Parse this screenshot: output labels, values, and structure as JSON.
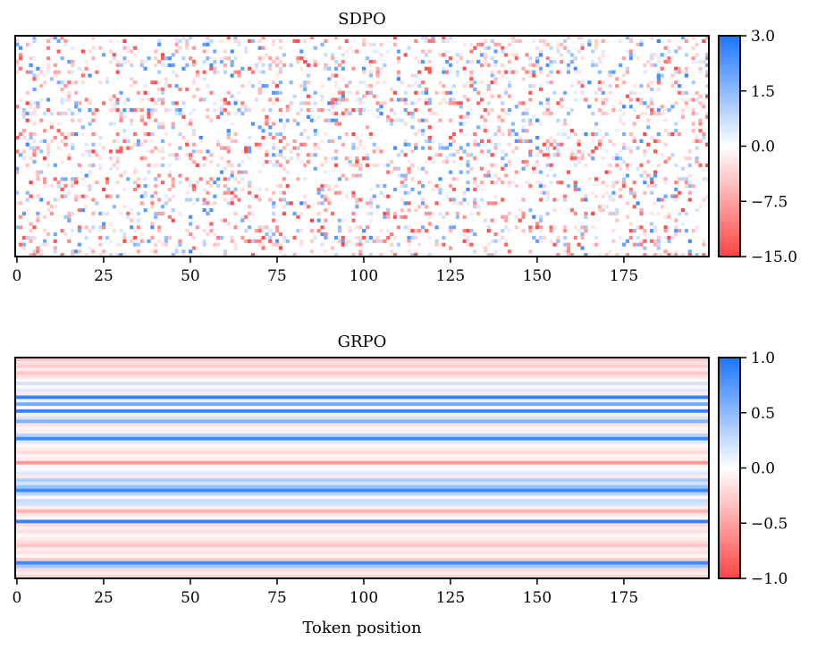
{
  "chart_data": [
    {
      "type": "heatmap",
      "title": "SDPO",
      "xlabel": "",
      "x_range": [
        0,
        199
      ],
      "rows": 64,
      "columns": 200,
      "x_ticks": [
        0,
        25,
        50,
        75,
        100,
        125,
        150,
        175
      ],
      "colorbar": {
        "min": -15.0,
        "center": 0.0,
        "max": 3.0,
        "ticks": [
          3.0,
          1.5,
          0.0,
          -7.5,
          -15.0
        ],
        "tick_labels": [
          "3.0",
          "1.5",
          "0.0",
          "−7.5",
          "−15.0"
        ],
        "negative_color": "#ff4444",
        "positive_color": "#1a75ff",
        "center_color": "#ffffff"
      },
      "pattern": "sparse per-token noise, mostly near zero with scattered red and blue cells"
    },
    {
      "type": "heatmap",
      "title": "GRPO",
      "xlabel": "Token position",
      "x_range": [
        0,
        199
      ],
      "rows": 64,
      "columns": 200,
      "x_ticks": [
        0,
        25,
        50,
        75,
        100,
        125,
        150,
        175
      ],
      "colorbar": {
        "min": -1.0,
        "center": 0.0,
        "max": 1.0,
        "ticks": [
          1.0,
          0.5,
          0.0,
          -0.5,
          -1.0
        ],
        "tick_labels": [
          "1.0",
          "0.5",
          "0.0",
          "−0.5",
          "−1.0"
        ],
        "negative_color": "#ff4444",
        "positive_color": "#1a75ff",
        "center_color": "#ffffff"
      },
      "row_values": [
        -0.3,
        -0.15,
        -0.25,
        -0.1,
        -0.3,
        -0.15,
        -0.05,
        0.2,
        -0.05,
        0.15,
        -0.1,
        0.9,
        0.1,
        0.6,
        -0.05,
        0.9,
        -0.1,
        0.2,
        0.55,
        -0.15,
        -0.05,
        -0.1,
        0.3,
        0.85,
        0.15,
        -0.05,
        -0.1,
        -0.2,
        -0.05,
        -0.1,
        -0.55,
        -0.05,
        0.05,
        0.15,
        -0.1,
        0.35,
        0.2,
        0.45,
        0.85,
        0.3,
        -0.05,
        0.25,
        0.2,
        -0.1,
        -0.4,
        -0.15,
        -0.05,
        0.9,
        -0.2,
        -0.1,
        -0.15,
        -0.05,
        -0.1,
        -0.2,
        -0.3,
        -0.1,
        -0.15,
        -0.05,
        -0.25,
        0.85,
        0.4,
        -0.2,
        -0.1,
        -0.25
      ]
    }
  ]
}
